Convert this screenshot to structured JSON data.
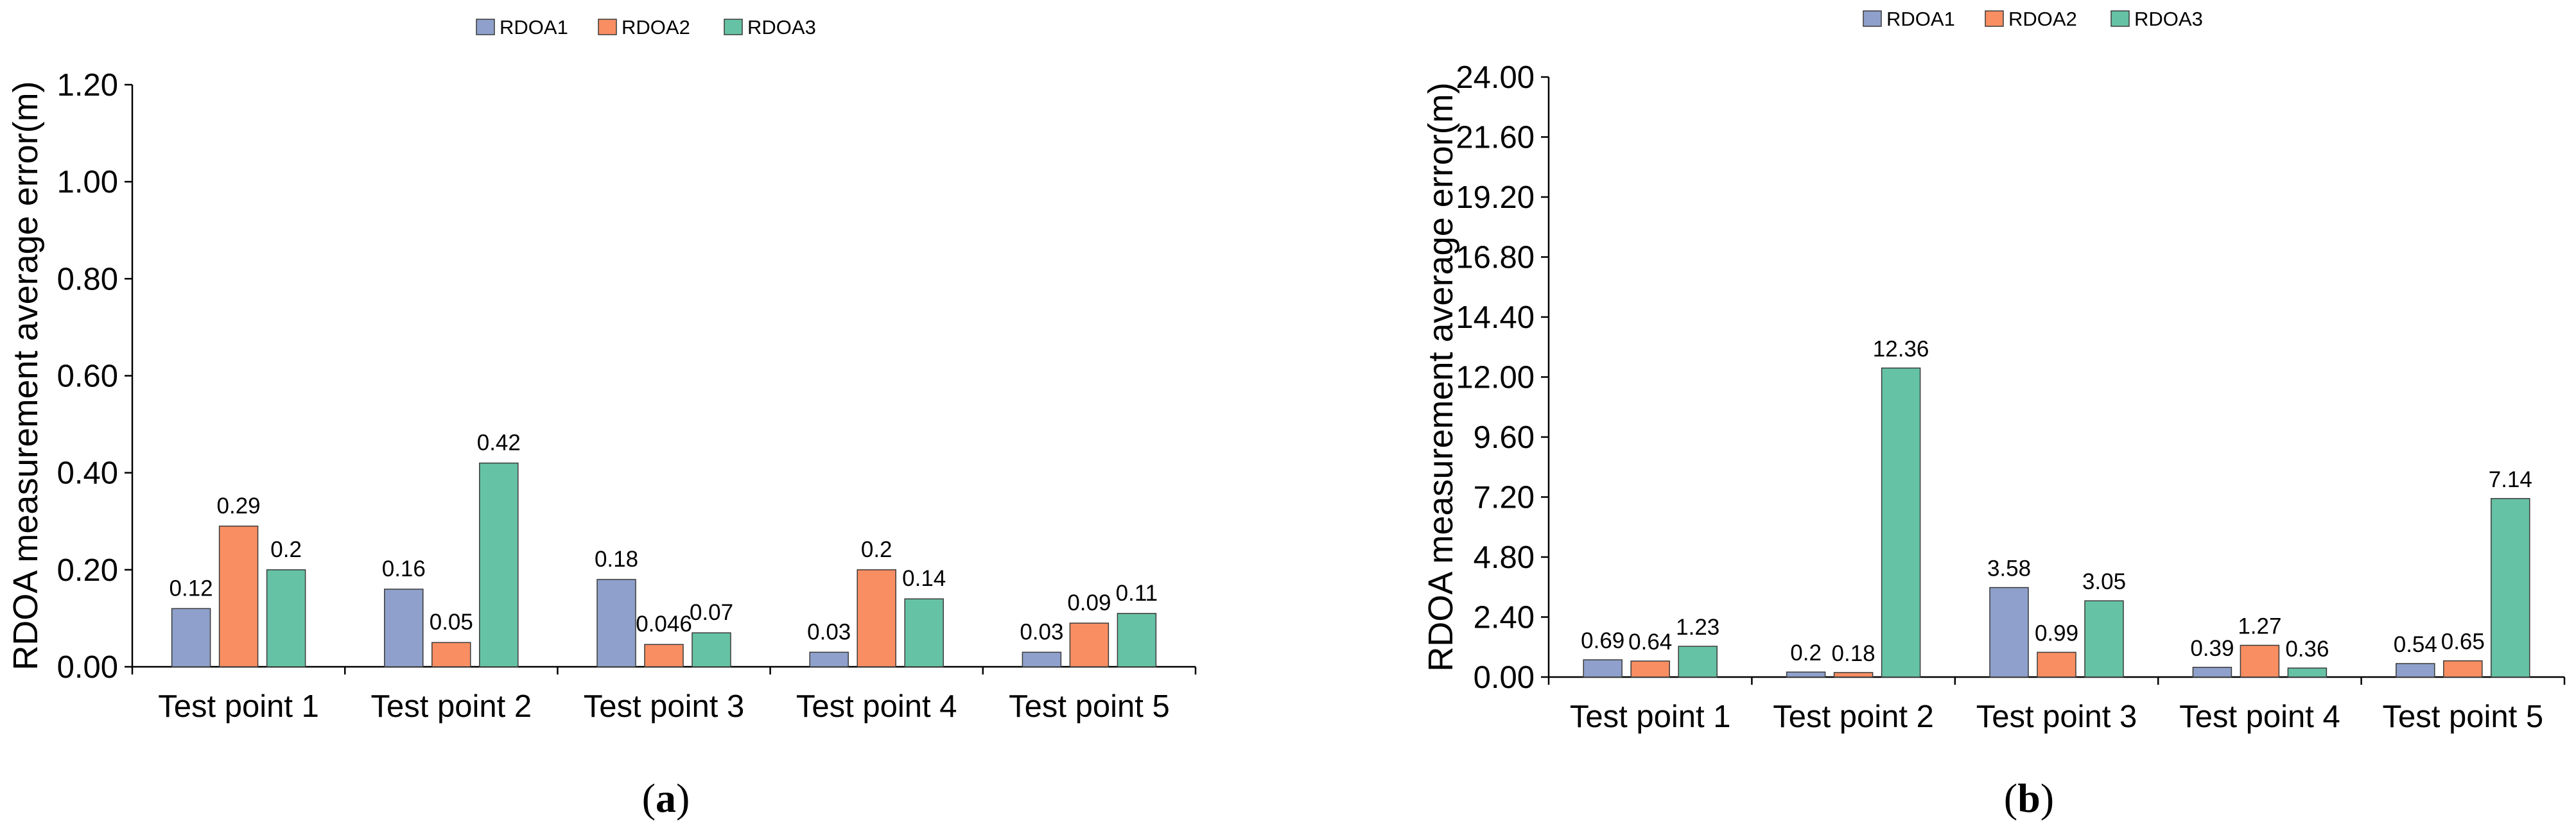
{
  "chart_data": [
    {
      "type": "bar",
      "panel_label": "a",
      "categories": [
        "Test point 1",
        "Test point 2",
        "Test point 3",
        "Test point 4",
        "Test point 5"
      ],
      "series": [
        {
          "name": "RDOA1",
          "color": "#8EA0CB",
          "values": [
            0.12,
            0.16,
            0.18,
            0.03,
            0.03
          ],
          "labels": [
            "0.12",
            "0.16",
            "0.18",
            "0.03",
            "0.03"
          ]
        },
        {
          "name": "RDOA2",
          "color": "#F98E62",
          "values": [
            0.29,
            0.05,
            0.046,
            0.2,
            0.09
          ],
          "labels": [
            "0.29",
            "0.05",
            "0.046",
            "0.2",
            "0.09"
          ]
        },
        {
          "name": "RDOA3",
          "color": "#66C2A5",
          "values": [
            0.2,
            0.42,
            0.07,
            0.14,
            0.11
          ],
          "labels": [
            "0.2",
            "0.42",
            "0.07",
            "0.14",
            "0.11"
          ]
        }
      ],
      "ylabel": "RDOA measurement average error(m)",
      "ylim": [
        0,
        1.2
      ],
      "yticks": [
        "0.00",
        "0.20",
        "0.40",
        "0.60",
        "0.80",
        "1.00",
        "1.20"
      ],
      "legend": "top-center",
      "grid": false
    },
    {
      "type": "bar",
      "panel_label": "b",
      "categories": [
        "Test point 1",
        "Test point 2",
        "Test point 3",
        "Test point 4",
        "Test point 5"
      ],
      "series": [
        {
          "name": "RDOA1",
          "color": "#8EA0CB",
          "values": [
            0.69,
            0.2,
            3.58,
            0.39,
            0.54
          ],
          "labels": [
            "0.69",
            "0.2",
            "3.58",
            "0.39",
            "0.54"
          ]
        },
        {
          "name": "RDOA2",
          "color": "#F98E62",
          "values": [
            0.64,
            0.18,
            0.99,
            1.27,
            0.65
          ],
          "labels": [
            "0.64",
            "0.18",
            "0.99",
            "1.27",
            "0.65"
          ]
        },
        {
          "name": "RDOA3",
          "color": "#66C2A5",
          "values": [
            1.23,
            12.36,
            3.05,
            0.36,
            7.14
          ],
          "labels": [
            "1.23",
            "12.36",
            "3.05",
            "0.36",
            "7.14"
          ]
        }
      ],
      "ylabel": "RDOA measurement average error(m)",
      "ylim": [
        0,
        24
      ],
      "yticks": [
        "0.00",
        "2.40",
        "4.80",
        "7.20",
        "9.60",
        "12.00",
        "14.40",
        "16.80",
        "19.20",
        "21.60",
        "24.00"
      ],
      "legend": "top-center",
      "grid": false
    }
  ]
}
